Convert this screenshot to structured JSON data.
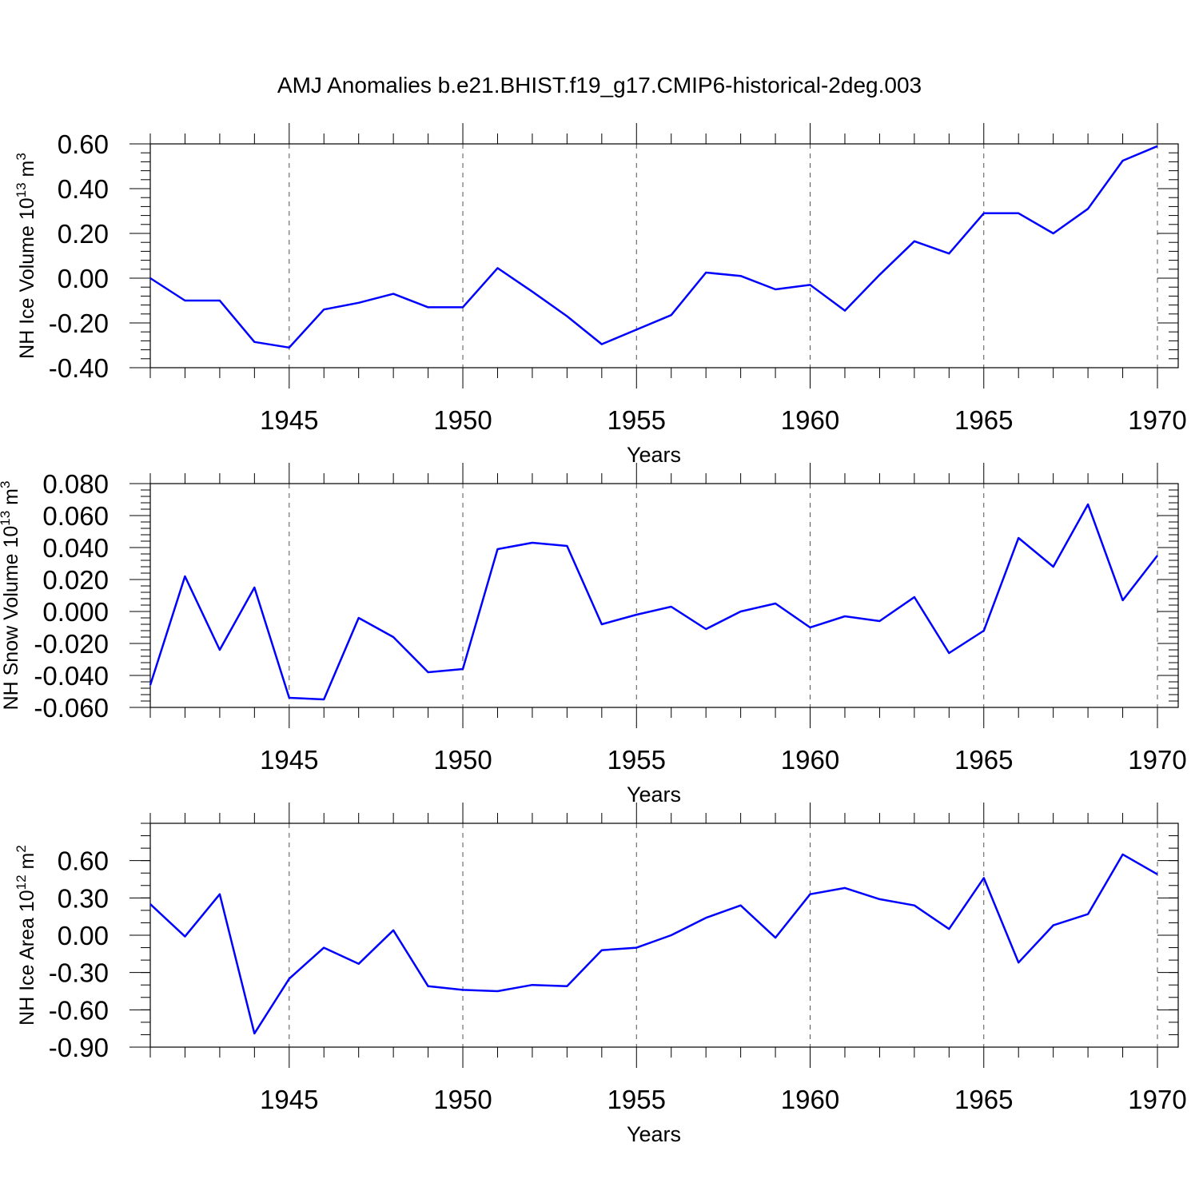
{
  "title": "AMJ Anomalies b.e21.BHIST.f19_g17.CMIP6-historical-2deg.003",
  "chart_data": [
    {
      "type": "line",
      "ylabel_main": "NH Ice Volume 10",
      "ylabel_exp": "13",
      "ylabel_unit": " m",
      "ylabel_unit_exp": "3",
      "xlabel": "Years",
      "xlim": [
        1941,
        1970
      ],
      "ylim": [
        -0.4,
        0.6
      ],
      "yticks": [
        -0.4,
        -0.2,
        0.0,
        0.2,
        0.4,
        0.6
      ],
      "yticklabels": [
        "-0.40",
        "-0.20",
        "0.00",
        "0.20",
        "0.40",
        "0.60"
      ],
      "yminor_step": 0.04,
      "xticks": [
        1945,
        1950,
        1955,
        1960,
        1965,
        1970
      ],
      "xticklabels": [
        "1945",
        "1950",
        "1955",
        "1960",
        "1965",
        "1970"
      ],
      "grid": "vertical dashed at labeled years",
      "color": "#0000ff",
      "x": [
        1941,
        1942,
        1943,
        1944,
        1945,
        1946,
        1947,
        1948,
        1949,
        1950,
        1951,
        1952,
        1953,
        1954,
        1955,
        1956,
        1957,
        1958,
        1959,
        1960,
        1961,
        1962,
        1963,
        1964,
        1965,
        1966,
        1967,
        1968,
        1969,
        1970
      ],
      "values": [
        0.0,
        -0.1,
        -0.1,
        -0.285,
        -0.31,
        -0.14,
        -0.11,
        -0.07,
        -0.13,
        -0.13,
        0.045,
        -0.06,
        -0.17,
        -0.295,
        -0.23,
        -0.165,
        0.025,
        0.01,
        -0.05,
        -0.03,
        -0.145,
        0.015,
        0.165,
        0.11,
        0.29,
        0.29,
        0.2,
        0.31,
        0.525,
        0.59
      ]
    },
    {
      "type": "line",
      "ylabel_main": "NH Snow Volume 10",
      "ylabel_exp": "13",
      "ylabel_unit": " m",
      "ylabel_unit_exp": "3",
      "xlabel": "Years",
      "xlim": [
        1941,
        1970
      ],
      "ylim": [
        -0.06,
        0.08
      ],
      "yticks": [
        -0.06,
        -0.04,
        -0.02,
        0.0,
        0.02,
        0.04,
        0.06,
        0.08
      ],
      "yticklabels": [
        "-0.060",
        "-0.040",
        "-0.020",
        "0.000",
        "0.020",
        "0.040",
        "0.060",
        "0.080"
      ],
      "yminor_step": 0.004,
      "xticks": [
        1945,
        1950,
        1955,
        1960,
        1965,
        1970
      ],
      "xticklabels": [
        "1945",
        "1950",
        "1955",
        "1960",
        "1965",
        "1970"
      ],
      "grid": "vertical dashed at labeled years",
      "color": "#0000ff",
      "x": [
        1941,
        1942,
        1943,
        1944,
        1945,
        1946,
        1947,
        1948,
        1949,
        1950,
        1951,
        1952,
        1953,
        1954,
        1955,
        1956,
        1957,
        1958,
        1959,
        1960,
        1961,
        1962,
        1963,
        1964,
        1965,
        1966,
        1967,
        1968,
        1969,
        1970
      ],
      "values": [
        -0.046,
        0.022,
        -0.024,
        0.015,
        -0.054,
        -0.055,
        -0.004,
        -0.016,
        -0.038,
        -0.036,
        0.039,
        0.043,
        0.041,
        -0.008,
        -0.002,
        0.003,
        -0.011,
        0.0,
        0.005,
        -0.01,
        -0.003,
        -0.006,
        0.009,
        -0.026,
        -0.012,
        0.046,
        0.028,
        0.067,
        0.007,
        0.035
      ]
    },
    {
      "type": "line",
      "ylabel_main": "NH Ice Area 10",
      "ylabel_exp": "12",
      "ylabel_unit": " m",
      "ylabel_unit_exp": "2",
      "xlabel": "Years",
      "xlim": [
        1941,
        1970
      ],
      "ylim": [
        -0.9,
        0.9
      ],
      "yticks": [
        -0.9,
        -0.6,
        -0.3,
        0.0,
        0.3,
        0.6
      ],
      "yticklabels": [
        "-0.90",
        "-0.60",
        "-0.30",
        "0.00",
        "0.30",
        "0.60"
      ],
      "yminor_step": 0.1,
      "xticks": [
        1945,
        1950,
        1955,
        1960,
        1965,
        1970
      ],
      "xticklabels": [
        "1945",
        "1950",
        "1955",
        "1960",
        "1965",
        "1970"
      ],
      "grid": "vertical dashed at labeled years",
      "color": "#0000ff",
      "x": [
        1941,
        1942,
        1943,
        1944,
        1945,
        1946,
        1947,
        1948,
        1949,
        1950,
        1951,
        1952,
        1953,
        1954,
        1955,
        1956,
        1957,
        1958,
        1959,
        1960,
        1961,
        1962,
        1963,
        1964,
        1965,
        1966,
        1967,
        1968,
        1969,
        1970
      ],
      "values": [
        0.25,
        -0.01,
        0.33,
        -0.79,
        -0.35,
        -0.1,
        -0.23,
        0.04,
        -0.41,
        -0.44,
        -0.45,
        -0.4,
        -0.41,
        -0.12,
        -0.1,
        0.0,
        0.14,
        0.24,
        -0.02,
        0.33,
        0.38,
        0.29,
        0.24,
        0.05,
        0.46,
        -0.22,
        0.08,
        0.17,
        0.65,
        0.49
      ]
    }
  ]
}
